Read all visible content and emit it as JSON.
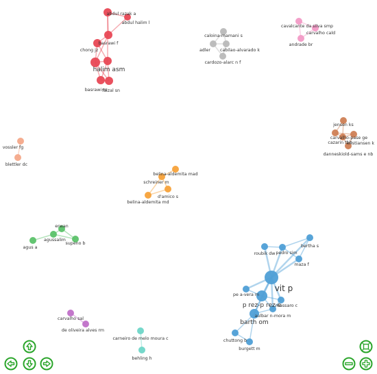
{
  "colors": {
    "red": "#e84855",
    "gray": "#b9b9b9",
    "pink": "#f29ac6",
    "brown": "#cf7f55",
    "salmon": "#f4a98a",
    "orange": "#f7a23a",
    "green": "#5cc26a",
    "blue": "#4f9fd6",
    "purple": "#c070c8",
    "teal": "#6fd6c8",
    "control": "#2aa52a"
  },
  "nodes": [
    {
      "id": "abdul_razak",
      "label": "abdul razak a",
      "cluster": "red",
      "r": 6
    },
    {
      "id": "abdul_halim",
      "label": "abdul halim l",
      "cluster": "red",
      "r": 5
    },
    {
      "id": "basrawi_f",
      "label": "basrawi f",
      "cluster": "red",
      "r": 6
    },
    {
      "id": "chong",
      "label": "chong jz",
      "cluster": "red",
      "r": 6
    },
    {
      "id": "halim_asm",
      "label": "halim asm",
      "cluster": "red",
      "r": 7
    },
    {
      "id": "halim2",
      "label": "",
      "cluster": "red",
      "r": 6
    },
    {
      "id": "basrawi_m",
      "label": "basrawi m",
      "cluster": "red",
      "r": 6
    },
    {
      "id": "faizal",
      "label": "faizal sn",
      "cluster": "red",
      "r": 6
    },
    {
      "id": "caloina",
      "label": "caloina-mamani s",
      "cluster": "gray",
      "r": 5
    },
    {
      "id": "adler",
      "label": "adler",
      "cluster": "gray",
      "r": 5
    },
    {
      "id": "cabilao",
      "label": "cabilao-alvarado k",
      "cluster": "gray",
      "r": 5
    },
    {
      "id": "cardozo",
      "label": "cardozo-alarc n f",
      "cluster": "gray",
      "r": 5
    },
    {
      "id": "cavalcante",
      "label": "cavalcante da silva smp",
      "cluster": "pink",
      "r": 5
    },
    {
      "id": "carvalho_cald",
      "label": "carvalho cald",
      "cluster": "pink",
      "r": 5
    },
    {
      "id": "andrade",
      "label": "andrade br",
      "cluster": "pink",
      "r": 5
    },
    {
      "id": "jensen",
      "label": "jensen ks",
      "cluster": "brown",
      "r": 5
    },
    {
      "id": "carvalho_pase",
      "label": "carvalho-pase ge",
      "cluster": "brown",
      "r": 5
    },
    {
      "id": "cazarin",
      "label": "cazarin tbb",
      "cluster": "brown",
      "r": 5
    },
    {
      "id": "kristiansen",
      "label": "kristiansen k",
      "cluster": "brown",
      "r": 5
    },
    {
      "id": "danneskiold",
      "label": "danneskiold-sams e nb",
      "cluster": "brown",
      "r": 5
    },
    {
      "id": "vossler",
      "label": "vossler fg",
      "cluster": "salmon",
      "r": 5
    },
    {
      "id": "blettler",
      "label": "blettler dc",
      "cluster": "salmon",
      "r": 5
    },
    {
      "id": "belina_mad",
      "label": "belina-aldemita mad",
      "cluster": "orange",
      "r": 5
    },
    {
      "id": "schreiner",
      "label": "schreiner m",
      "cluster": "orange",
      "r": 5
    },
    {
      "id": "damico",
      "label": "d'amico s",
      "cluster": "orange",
      "r": 5
    },
    {
      "id": "belina_md",
      "label": "belina-aldemita md",
      "cluster": "orange",
      "r": 5
    },
    {
      "id": "erwan",
      "label": "erwan",
      "cluster": "green",
      "r": 5
    },
    {
      "id": "agussalim",
      "label": "agussalim",
      "cluster": "green",
      "r": 5
    },
    {
      "id": "supeno",
      "label": "supeno b",
      "cluster": "green",
      "r": 5
    },
    {
      "id": "agus",
      "label": "agus a",
      "cluster": "green",
      "r": 5
    },
    {
      "id": "bertha",
      "label": "bertha s",
      "cluster": "blue",
      "r": 5
    },
    {
      "id": "roubik",
      "label": "roubik dw",
      "cluster": "blue",
      "r": 5
    },
    {
      "id": "pedro",
      "label": "pedro sim",
      "cluster": "blue",
      "r": 5
    },
    {
      "id": "maza",
      "label": "maza f",
      "cluster": "blue",
      "r": 5
    },
    {
      "id": "vit",
      "label": "vit p",
      "cluster": "blue",
      "r": 10
    },
    {
      "id": "perez_vera",
      "label": "pe a-vera m",
      "cluster": "blue",
      "r": 5
    },
    {
      "id": "perez_rez",
      "label": "p rez-p rez e",
      "cluster": "blue",
      "r": 8
    },
    {
      "id": "massaro",
      "label": "massaro c",
      "cluster": "blue",
      "r": 5
    },
    {
      "id": "aulbar",
      "label": "aulbar n-mora m",
      "cluster": "blue",
      "r": 5
    },
    {
      "id": "barth",
      "label": "barth om",
      "cluster": "blue",
      "r": 7
    },
    {
      "id": "chuttong",
      "label": "chuttong b",
      "cluster": "blue",
      "r": 5
    },
    {
      "id": "burgett",
      "label": "burgett m",
      "cluster": "blue",
      "r": 5
    },
    {
      "id": "carvalho_sal",
      "label": "carvalho sal",
      "cluster": "purple",
      "r": 5
    },
    {
      "id": "oliveira",
      "label": "de oliveira alves rm",
      "cluster": "purple",
      "r": 5
    },
    {
      "id": "carneiro",
      "label": "carneiro de melo moura c",
      "cluster": "teal",
      "r": 5
    },
    {
      "id": "behling",
      "label": "behling h",
      "cluster": "teal",
      "r": 5
    }
  ],
  "edges": [
    [
      "abdul_razak",
      "abdul_halim"
    ],
    [
      "abdul_razak",
      "basrawi_f"
    ],
    [
      "abdul_halim",
      "basrawi_f"
    ],
    [
      "basrawi_f",
      "chong"
    ],
    [
      "basrawi_f",
      "halim_asm"
    ],
    [
      "chong",
      "halim_asm"
    ],
    [
      "chong",
      "halim2"
    ],
    [
      "halim_asm",
      "halim2"
    ],
    [
      "halim_asm",
      "basrawi_m"
    ],
    [
      "halim_asm",
      "faizal"
    ],
    [
      "halim2",
      "basrawi_m"
    ],
    [
      "halim2",
      "faizal"
    ],
    [
      "basrawi_m",
      "faizal"
    ],
    [
      "abdul_razak",
      "halim2"
    ],
    [
      "caloina",
      "adler"
    ],
    [
      "caloina",
      "cabilao"
    ],
    [
      "adler",
      "cabilao"
    ],
    [
      "adler",
      "cardozo"
    ],
    [
      "cabilao",
      "cardozo"
    ],
    [
      "cavalcante",
      "carvalho_cald"
    ],
    [
      "cavalcante",
      "andrade"
    ],
    [
      "carvalho_cald",
      "andrade"
    ],
    [
      "jensen",
      "carvalho_pase"
    ],
    [
      "jensen",
      "cazarin"
    ],
    [
      "carvalho_pase",
      "cazarin"
    ],
    [
      "carvalho_pase",
      "kristiansen"
    ],
    [
      "cazarin",
      "kristiansen"
    ],
    [
      "kristiansen",
      "danneskiold"
    ],
    [
      "cazarin",
      "danneskiold"
    ],
    [
      "vossler",
      "blettler"
    ],
    [
      "belina_mad",
      "schreiner"
    ],
    [
      "schreiner",
      "damico"
    ],
    [
      "schreiner",
      "belina_md"
    ],
    [
      "damico",
      "belina_md"
    ],
    [
      "erwan",
      "agussalim"
    ],
    [
      "erwan",
      "supeno"
    ],
    [
      "agussalim",
      "supeno"
    ],
    [
      "agussalim",
      "agus"
    ],
    [
      "bertha",
      "pedro"
    ],
    [
      "bertha",
      "maza"
    ],
    [
      "pedro",
      "roubik"
    ],
    [
      "pedro",
      "maza"
    ],
    [
      "roubik",
      "vit"
    ],
    [
      "pedro",
      "vit"
    ],
    [
      "maza",
      "vit"
    ],
    [
      "bertha",
      "vit"
    ],
    [
      "vit",
      "perez_vera"
    ],
    [
      "vit",
      "perez_rez"
    ],
    [
      "vit",
      "massaro"
    ],
    [
      "vit",
      "aulbar"
    ],
    [
      "vit",
      "barth"
    ],
    [
      "perez_vera",
      "perez_rez"
    ],
    [
      "perez_rez",
      "massaro"
    ],
    [
      "perez_rez",
      "aulbar"
    ],
    [
      "perez_rez",
      "barth"
    ],
    [
      "aulbar",
      "barth"
    ],
    [
      "barth",
      "chuttong"
    ],
    [
      "barth",
      "burgett"
    ],
    [
      "chuttong",
      "burgett"
    ],
    [
      "massaro",
      "aulbar"
    ],
    [
      "carvalho_sal",
      "oliveira"
    ],
    [
      "carneiro",
      "behling"
    ]
  ],
  "controls": {
    "up": "pan-up",
    "left": "pan-left",
    "down": "pan-down",
    "right": "pan-right",
    "fit": "zoom-extends",
    "zoom_out": "zoom-out",
    "zoom_in": "zoom-in"
  }
}
